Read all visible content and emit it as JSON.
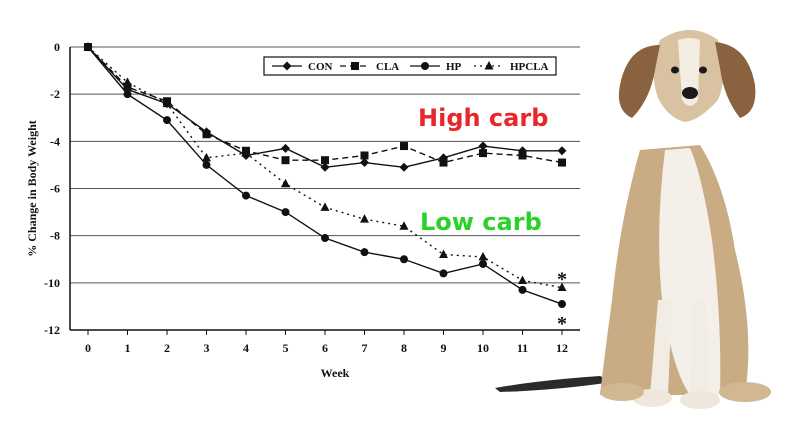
{
  "chart_data": {
    "type": "line",
    "xlabel": "Week",
    "ylabel": "% Change in Body Weight",
    "xlim": [
      0,
      12
    ],
    "ylim": [
      -12,
      0
    ],
    "x_ticks": [
      0,
      1,
      2,
      3,
      4,
      5,
      6,
      7,
      8,
      9,
      10,
      11,
      12
    ],
    "y_ticks": [
      0,
      -2,
      -4,
      -6,
      -8,
      -10,
      -12
    ],
    "grid": "horizontal",
    "legend_position": "top",
    "x": [
      0,
      1,
      2,
      3,
      4,
      5,
      6,
      7,
      8,
      9,
      10,
      11,
      12
    ],
    "series": [
      {
        "name": "CON",
        "marker": "diamond",
        "line": "solid",
        "values": [
          0,
          -1.8,
          -2.4,
          -3.6,
          -4.6,
          -4.3,
          -5.1,
          -4.9,
          -5.1,
          -4.7,
          -4.2,
          -4.4,
          -4.4
        ]
      },
      {
        "name": "CLA",
        "marker": "square",
        "line": "dashed",
        "values": [
          0,
          -1.7,
          -2.3,
          -3.7,
          -4.4,
          -4.8,
          -4.8,
          -4.6,
          -4.2,
          -4.9,
          -4.5,
          -4.6,
          -4.9
        ]
      },
      {
        "name": "HP",
        "marker": "circle",
        "line": "solid",
        "values": [
          0,
          -2.0,
          -3.1,
          -5.0,
          -6.3,
          -7.0,
          -8.1,
          -8.7,
          -9.0,
          -9.6,
          -9.2,
          -10.3,
          -10.9
        ]
      },
      {
        "name": "HPCLA",
        "marker": "triangle",
        "line": "dotted",
        "values": [
          0,
          -1.5,
          -2.4,
          -4.7,
          -4.5,
          -5.8,
          -6.8,
          -7.3,
          -7.6,
          -8.8,
          -8.9,
          -9.9,
          -10.2
        ]
      }
    ],
    "annotations": [
      {
        "text": "High carb",
        "color": "#e8262b"
      },
      {
        "text": "Low carb",
        "color": "#2bd12b"
      },
      {
        "text": "*",
        "x": 12,
        "y": -10.2
      },
      {
        "text": "*",
        "x": 12,
        "y": -10.9
      }
    ]
  },
  "image": {
    "subject": "dog-sitting"
  }
}
